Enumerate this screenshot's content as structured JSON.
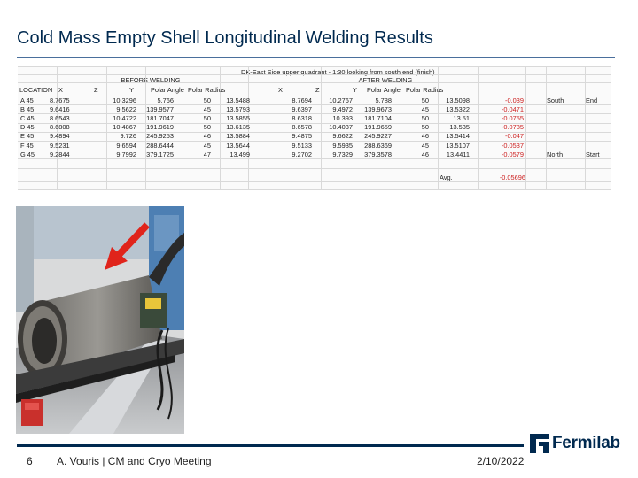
{
  "slide": {
    "title": "Cold Mass Empty Shell Longitudinal Welding Results",
    "page_number": "6",
    "presenter": "A. Vouris | CM and Cryo Meeting",
    "date": "2/10/2022",
    "logo_text": "Fermilab",
    "colors": {
      "title": "#00294f",
      "accent": "#00294f",
      "negative": "#cc1f1f"
    }
  },
  "table": {
    "caption": "DK-East Side upper quadrant - 1:30 looking from south end (finish)",
    "before_label": "BEFORE WELDING",
    "after_label": "AFTER WELDING",
    "headers": [
      "LOCATION",
      "X",
      "Z",
      "Y",
      "Polar Angle",
      "Polar Radius",
      "X",
      "Z",
      "Y",
      "Polar Angle",
      "Polar Radius"
    ],
    "rows": [
      {
        "loc": "A 45",
        "before": [
          "8.7675",
          "10.3296",
          "5.766",
          "50",
          "13.5488"
        ],
        "after": [
          "8.7694",
          "10.2767",
          "5.788",
          "50",
          "13.5098"
        ],
        "diff": "-0.039",
        "side": "South",
        "pos": "End"
      },
      {
        "loc": "B 45",
        "before": [
          "9.6416",
          "9.5622",
          "139.9577",
          "45",
          "13.5793"
        ],
        "after": [
          "9.6397",
          "9.4972",
          "139.9673",
          "45",
          "13.5322"
        ],
        "diff": "-0.0471",
        "side": "",
        "pos": ""
      },
      {
        "loc": "C 45",
        "before": [
          "8.6543",
          "10.4722",
          "181.7047",
          "50",
          "13.5855"
        ],
        "after": [
          "8.6318",
          "10.393",
          "181.7104",
          "50",
          "13.51"
        ],
        "diff": "-0.0755",
        "side": "",
        "pos": ""
      },
      {
        "loc": "D 45",
        "before": [
          "8.6808",
          "10.4867",
          "191.9619",
          "50",
          "13.6135"
        ],
        "after": [
          "8.6578",
          "10.4037",
          "191.9659",
          "50",
          "13.535"
        ],
        "diff": "-0.0785",
        "side": "",
        "pos": ""
      },
      {
        "loc": "E 45",
        "before": [
          "9.4894",
          "9.726",
          "245.9253",
          "46",
          "13.5884"
        ],
        "after": [
          "9.4875",
          "9.6622",
          "245.9227",
          "46",
          "13.5414"
        ],
        "diff": "-0.047",
        "side": "",
        "pos": ""
      },
      {
        "loc": "F 45",
        "before": [
          "9.5231",
          "9.6594",
          "288.6444",
          "45",
          "13.5644"
        ],
        "after": [
          "9.5133",
          "9.5935",
          "288.6369",
          "45",
          "13.5107"
        ],
        "diff": "-0.0537",
        "side": "",
        "pos": ""
      },
      {
        "loc": "G 45",
        "before": [
          "9.2844",
          "9.7992",
          "379.1725",
          "47",
          "13.499"
        ],
        "after": [
          "9.2702",
          "9.7329",
          "379.3578",
          "46",
          "13.4411"
        ],
        "diff": "-0.0579",
        "side": "North",
        "pos": "Start"
      }
    ],
    "avg_label": "Avg.",
    "avg_value": "-0.05696"
  },
  "photo": {
    "subject": "cold-mass-shell-on-welding-fixture",
    "arrow_color": "#e0241b"
  }
}
